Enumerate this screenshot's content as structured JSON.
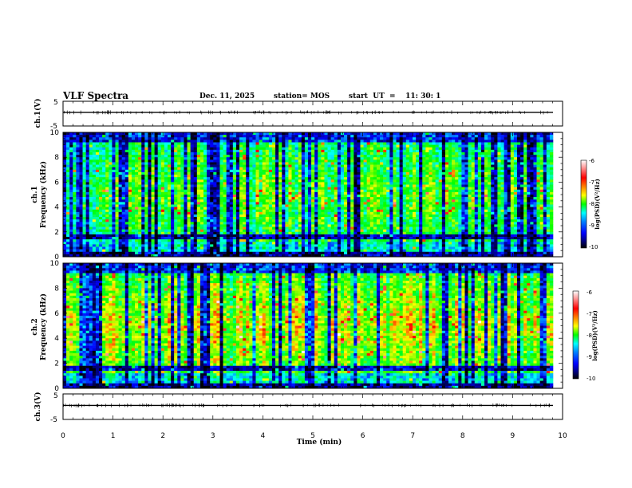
{
  "header": {
    "title": "VLF Spectra",
    "date": "Dec. 11, 2025",
    "station": "station= MOS",
    "start": "start  UT  =    11: 30: 1"
  },
  "colors": {
    "background": "#ffffff",
    "axes": "#000000",
    "colormap": [
      "#000000",
      "#00007f",
      "#0000ff",
      "#007fff",
      "#00ffff",
      "#00ff7f",
      "#00ff00",
      "#7fff00",
      "#ffff00",
      "#ff7f00",
      "#ff0000",
      "#ff7f7f",
      "#ffffff"
    ]
  },
  "chart_data": [
    {
      "type": "line",
      "panel": "ch.1 waveform",
      "ylabel": "ch.1(V)",
      "ylim": [
        -5,
        5
      ],
      "yticks": [
        "5",
        "-5"
      ],
      "baseline": 0,
      "series": [
        {
          "name": "ch.1",
          "mean": 0
        }
      ]
    },
    {
      "type": "heatmap",
      "panel": "ch.1 spectrogram",
      "ylabel": "ch.1\nFrequency (kHz)",
      "ylabel_line1": "ch.1",
      "ylabel_line2": "Frequency (kHz)",
      "ylim": [
        0,
        10
      ],
      "yticks": [
        "0",
        "2",
        "4",
        "6",
        "8",
        "10"
      ],
      "xlim": [
        0,
        10
      ],
      "colorbar": {
        "label": "log(PSD)(V²/Hz)",
        "range": [
          -10,
          -6
        ],
        "ticks": [
          "-6",
          "-7",
          "-8",
          "-9",
          "-10"
        ]
      },
      "seed": 11
    },
    {
      "type": "heatmap",
      "panel": "ch.2 spectrogram",
      "ylabel": "ch.2\nFrequency (kHz)",
      "ylabel_line1": "ch.2",
      "ylabel_line2": "Frequency (kHz)",
      "ylim": [
        0,
        10
      ],
      "yticks": [
        "0",
        "2",
        "4",
        "6",
        "8",
        "10"
      ],
      "xlim": [
        0,
        10
      ],
      "colorbar": {
        "label": "log(PSD)(V²/Hz)",
        "range": [
          -10,
          -6
        ],
        "ticks": [
          "-6",
          "-7",
          "-8",
          "-9",
          "-10"
        ]
      },
      "seed": 23
    },
    {
      "type": "line",
      "panel": "ch.3 waveform",
      "ylabel": "ch.3(V)",
      "ylim": [
        -5,
        5
      ],
      "yticks": [
        "5",
        "-5"
      ],
      "baseline": 0,
      "series": [
        {
          "name": "ch.3",
          "mean": 0
        }
      ]
    }
  ],
  "xaxis": {
    "label": "Time  (min)",
    "range": [
      0,
      10
    ],
    "ticks": [
      "0",
      "1",
      "2",
      "3",
      "4",
      "5",
      "6",
      "7",
      "8",
      "9",
      "10"
    ]
  }
}
